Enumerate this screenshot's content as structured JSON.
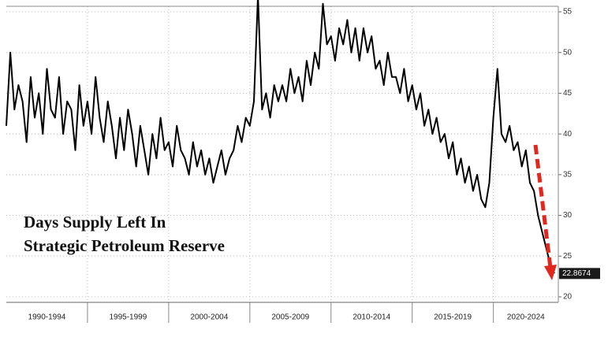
{
  "chart_data": {
    "type": "line",
    "title_lines": [
      "Days Supply Left In",
      "Strategic Petroleum Reserve"
    ],
    "xlim": [
      1990,
      2024
    ],
    "ylim": [
      20,
      55
    ],
    "yticks": [
      20,
      25,
      30,
      35,
      40,
      45,
      50,
      55
    ],
    "periods": [
      {
        "label": "1990-1994",
        "start": 1990,
        "end": 1995
      },
      {
        "label": "1995-1999",
        "start": 1995,
        "end": 2000
      },
      {
        "label": "2000-2004",
        "start": 2000,
        "end": 2005
      },
      {
        "label": "2005-2009",
        "start": 2005,
        "end": 2010
      },
      {
        "label": "2010-2014",
        "start": 2010,
        "end": 2015
      },
      {
        "label": "2015-2019",
        "start": 2015,
        "end": 2020
      },
      {
        "label": "2020-2024",
        "start": 2020,
        "end": 2024
      }
    ],
    "grid": true,
    "x": [
      1990,
      1990.25,
      1990.5,
      1990.75,
      1991,
      1991.25,
      1991.5,
      1991.75,
      1992,
      1992.25,
      1992.5,
      1992.75,
      1993,
      1993.25,
      1993.5,
      1993.75,
      1994,
      1994.25,
      1994.5,
      1994.75,
      1995,
      1995.25,
      1995.5,
      1995.75,
      1996,
      1996.25,
      1996.5,
      1996.75,
      1997,
      1997.25,
      1997.5,
      1997.75,
      1998,
      1998.25,
      1998.5,
      1998.75,
      1999,
      1999.25,
      1999.5,
      1999.75,
      2000,
      2000.25,
      2000.5,
      2000.75,
      2001,
      2001.25,
      2001.5,
      2001.75,
      2002,
      2002.25,
      2002.5,
      2002.75,
      2003,
      2003.25,
      2003.5,
      2003.75,
      2004,
      2004.25,
      2004.5,
      2004.75,
      2005,
      2005.25,
      2005.5,
      2005.75,
      2006,
      2006.25,
      2006.5,
      2006.75,
      2007,
      2007.25,
      2007.5,
      2007.75,
      2008,
      2008.25,
      2008.5,
      2008.75,
      2009,
      2009.25,
      2009.5,
      2009.75,
      2010,
      2010.25,
      2010.5,
      2010.75,
      2011,
      2011.25,
      2011.5,
      2011.75,
      2012,
      2012.25,
      2012.5,
      2012.75,
      2013,
      2013.25,
      2013.5,
      2013.75,
      2014,
      2014.25,
      2014.5,
      2014.75,
      2015,
      2015.25,
      2015.5,
      2015.75,
      2016,
      2016.25,
      2016.5,
      2016.75,
      2017,
      2017.25,
      2017.5,
      2017.75,
      2018,
      2018.25,
      2018.5,
      2018.75,
      2019,
      2019.25,
      2019.5,
      2019.75,
      2020,
      2020.25,
      2020.5,
      2020.75,
      2021,
      2021.25,
      2021.5,
      2021.75,
      2022,
      2022.25,
      2022.5,
      2022.75,
      2023,
      2023.25,
      2023.5,
      2023.75
    ],
    "series": [
      {
        "color": "#000000",
        "values": [
          41,
          50,
          43,
          46,
          44,
          39,
          47,
          42,
          45,
          40,
          48,
          43,
          42,
          47,
          40,
          44,
          43,
          38,
          46,
          41,
          44,
          40,
          47,
          42,
          39,
          44,
          41,
          37,
          42,
          38,
          43,
          40,
          36,
          41,
          38,
          35,
          40,
          37,
          42,
          38,
          39,
          36,
          41,
          38,
          37,
          35,
          39,
          36,
          38,
          35,
          37,
          34,
          36,
          38,
          35,
          37,
          38,
          41,
          39,
          42,
          41,
          44,
          57,
          43,
          45,
          42,
          46,
          44,
          46,
          44,
          48,
          45,
          47,
          44,
          49,
          46,
          50,
          48,
          56,
          51,
          52,
          49,
          53,
          51,
          54,
          50,
          53,
          49,
          53,
          50,
          52,
          48,
          49,
          46,
          50,
          47,
          47,
          45,
          48,
          44,
          46,
          43,
          45,
          41,
          43,
          40,
          42,
          39,
          40,
          37,
          39,
          35,
          37,
          34,
          36,
          33,
          35,
          32,
          31,
          34,
          42,
          48,
          40,
          39,
          41,
          38,
          39,
          36,
          38,
          34,
          33,
          30,
          28,
          26,
          24,
          22.8674
        ]
      }
    ],
    "last_value": {
      "label": "22.8674",
      "value": 22.8674
    }
  }
}
